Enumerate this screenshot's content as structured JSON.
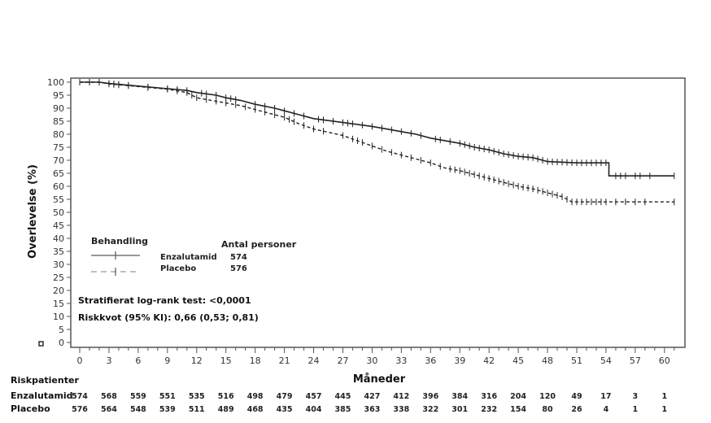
{
  "chart_data": {
    "type": "line",
    "subtype": "kaplan-meier",
    "title": "",
    "xlabel": "Måneder",
    "ylabel": "Overlevelse (%)",
    "xlim": [
      0,
      62
    ],
    "ylim": [
      0,
      100
    ],
    "x_ticks": [
      0,
      3,
      6,
      9,
      12,
      15,
      18,
      21,
      24,
      27,
      30,
      33,
      36,
      39,
      42,
      45,
      48,
      51,
      54,
      57,
      60
    ],
    "y_ticks": [
      0,
      5,
      10,
      15,
      20,
      25,
      30,
      35,
      40,
      45,
      50,
      55,
      60,
      65,
      70,
      75,
      80,
      85,
      90,
      95,
      100
    ],
    "grid": false,
    "legend": {
      "title": "Behandling",
      "count_header": "Antal personer",
      "placement": "lower-left",
      "entries": [
        {
          "name": "Enzalutamid",
          "count": "574",
          "style": "solid"
        },
        {
          "name": "Placebo",
          "count": "576",
          "style": "dashed"
        }
      ]
    },
    "annotations": [
      "Stratifierat log-rank test: <0,0001",
      "Riskkvot (95% KI): 0,66 (0,53; 0,81)"
    ],
    "series": [
      {
        "name": "Enzalutamid",
        "style": "solid",
        "color": "#222222",
        "points": [
          [
            0,
            100
          ],
          [
            2,
            100
          ],
          [
            3,
            99.5
          ],
          [
            6,
            98.5
          ],
          [
            9,
            97.5
          ],
          [
            11,
            96.8
          ],
          [
            12,
            96
          ],
          [
            14,
            95
          ],
          [
            15,
            94
          ],
          [
            16.5,
            93
          ],
          [
            18,
            91.5
          ],
          [
            20,
            90
          ],
          [
            21,
            89
          ],
          [
            22.5,
            87.5
          ],
          [
            24,
            86
          ],
          [
            27,
            84.5
          ],
          [
            30,
            83
          ],
          [
            31.5,
            82
          ],
          [
            33,
            81
          ],
          [
            34.5,
            80
          ],
          [
            36,
            78.5
          ],
          [
            39,
            76.5
          ],
          [
            40.5,
            75
          ],
          [
            42,
            74
          ],
          [
            43.5,
            72.5
          ],
          [
            45,
            71.5
          ],
          [
            46.5,
            71
          ],
          [
            48,
            69.5
          ],
          [
            51,
            69
          ],
          [
            54.3,
            69
          ],
          [
            54.3,
            64
          ],
          [
            61,
            64
          ]
        ],
        "censor_marks": [
          0,
          1,
          2,
          3,
          3.5,
          4,
          5,
          7,
          9,
          10,
          11,
          12.5,
          13,
          14,
          15,
          15.5,
          16,
          18,
          19,
          20,
          21,
          22,
          23,
          24.5,
          25,
          26,
          27,
          27.5,
          28,
          29,
          30,
          31,
          32,
          33,
          34,
          35,
          36.5,
          37,
          38,
          39,
          39.5,
          40,
          40.5,
          41,
          41.5,
          42,
          42.5,
          43,
          43.5,
          44,
          44.5,
          45,
          45.5,
          46,
          46.5,
          47,
          47.5,
          48,
          48.5,
          49,
          49.5,
          50,
          50.5,
          51,
          51.5,
          52,
          52.5,
          53,
          53.5,
          54,
          55,
          55.5,
          56,
          57,
          57.5,
          58.5,
          61
        ]
      },
      {
        "name": "Placebo",
        "style": "dashed",
        "color": "#222222",
        "points": [
          [
            0,
            100
          ],
          [
            2,
            100
          ],
          [
            3,
            99.3
          ],
          [
            6,
            98.3
          ],
          [
            9,
            97.3
          ],
          [
            11,
            96
          ],
          [
            12,
            94
          ],
          [
            13.5,
            93
          ],
          [
            15,
            92
          ],
          [
            16.5,
            91
          ],
          [
            18,
            89.5
          ],
          [
            19.5,
            88
          ],
          [
            21,
            86.5
          ],
          [
            22.5,
            84
          ],
          [
            24,
            82
          ],
          [
            27,
            79.5
          ],
          [
            28.5,
            77.5
          ],
          [
            30,
            75.5
          ],
          [
            31.5,
            73.5
          ],
          [
            33,
            72
          ],
          [
            34.5,
            70.5
          ],
          [
            36,
            69
          ],
          [
            37.5,
            67
          ],
          [
            39,
            66
          ],
          [
            40.5,
            64.5
          ],
          [
            42,
            63
          ],
          [
            43.5,
            61.5
          ],
          [
            45,
            60
          ],
          [
            46.5,
            59
          ],
          [
            48,
            57.5
          ],
          [
            49.5,
            56
          ],
          [
            50.5,
            54
          ],
          [
            61,
            54
          ]
        ],
        "censor_marks": [
          0,
          1,
          2,
          3,
          3.5,
          4,
          5,
          7,
          9,
          10,
          11,
          11.5,
          12,
          13,
          14,
          15,
          16,
          17,
          18,
          19,
          20,
          21,
          21.5,
          22,
          23,
          24,
          25,
          27,
          28,
          28.5,
          29,
          30,
          31,
          32,
          33,
          34,
          35,
          36,
          37,
          38,
          38.5,
          39,
          39.5,
          40,
          40.5,
          41,
          41.5,
          42,
          42.5,
          43,
          43.5,
          44,
          44.5,
          45,
          45.5,
          46,
          46.5,
          47,
          47.5,
          48,
          48.5,
          49,
          49.5,
          50,
          50.5,
          51,
          51.5,
          52,
          52.5,
          53,
          53.5,
          54,
          55,
          56,
          57,
          58,
          61
        ]
      }
    ],
    "risk_table": {
      "title": "Riskpatienter",
      "times": [
        0,
        3,
        6,
        9,
        12,
        15,
        18,
        21,
        24,
        27,
        30,
        33,
        36,
        39,
        42,
        45,
        48,
        51,
        54,
        57,
        60
      ],
      "rows": [
        {
          "name": "Enzalutamid",
          "values": [
            "574",
            "568",
            "559",
            "551",
            "535",
            "516",
            "498",
            "479",
            "457",
            "445",
            "427",
            "412",
            "396",
            "384",
            "316",
            "204",
            "120",
            "49",
            "17",
            "3",
            "1"
          ]
        },
        {
          "name": "Placebo",
          "values": [
            "576",
            "564",
            "548",
            "539",
            "511",
            "489",
            "468",
            "435",
            "404",
            "385",
            "363",
            "338",
            "322",
            "301",
            "232",
            "154",
            "80",
            "26",
            "4",
            "1",
            "1"
          ]
        }
      ]
    }
  }
}
